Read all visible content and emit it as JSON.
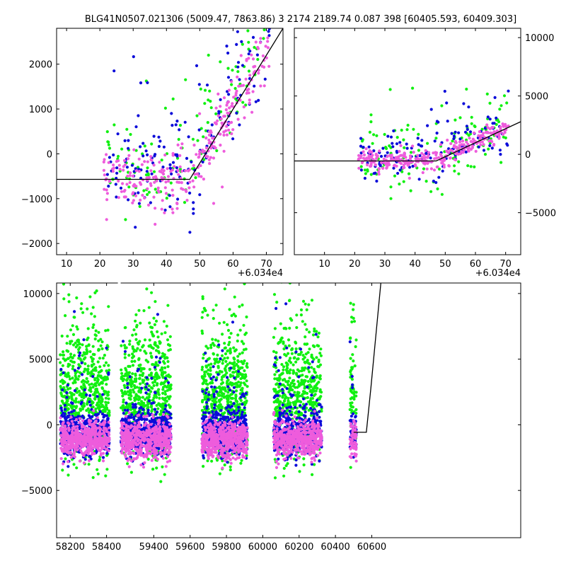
{
  "figure": {
    "title": "BLG41N0507.021306 (5009.47, 7863.86)   3 2174 2189.74 0.087 398 [60405.593, 60409.303]"
  },
  "colors": {
    "blue": "#0b0bd9",
    "green": "#11f011",
    "pink": "#ee5cdc",
    "line": "#000000",
    "background": "#ffffff"
  },
  "chart_data": [
    {
      "type": "scatter",
      "name": "top-left",
      "x_offset_label": "+6.034e4",
      "xlim": [
        7,
        75
      ],
      "ylim": [
        -2250,
        2800
      ],
      "xticks": [
        "10",
        "20",
        "30",
        "40",
        "50",
        "60",
        "70"
      ],
      "xtick_values": [
        10,
        20,
        30,
        40,
        50,
        60,
        70
      ],
      "yticks": [
        "−2000",
        "−1000",
        "0",
        "1000",
        "2000"
      ],
      "ytick_values": [
        -2000,
        -1000,
        0,
        1000,
        2000
      ],
      "model_line": [
        [
          7,
          -570
        ],
        [
          47,
          -570
        ],
        [
          75,
          2800
        ]
      ],
      "series": [
        {
          "color": "pink",
          "x_range": [
            21,
            71
          ],
          "baseline_y": -500,
          "n": 300,
          "scatter": 350
        },
        {
          "color": "blue",
          "x_range": [
            22,
            71
          ],
          "baseline_y": -200,
          "n": 160,
          "scatter": 500
        },
        {
          "color": "green",
          "x_range": [
            22,
            71
          ],
          "baseline_y": -250,
          "n": 130,
          "scatter": 600
        }
      ]
    },
    {
      "type": "scatter",
      "name": "top-right",
      "x_offset_label": "+6.034e4",
      "xlim": [
        0,
        75
      ],
      "ylim": [
        -8600,
        10800
      ],
      "xticks": [
        "10",
        "20",
        "30",
        "40",
        "50",
        "60",
        "70"
      ],
      "xtick_values": [
        10,
        20,
        30,
        40,
        50,
        60,
        70
      ],
      "yticks": [
        "−5000",
        "0",
        "5000",
        "10000"
      ],
      "ytick_values": [
        -5000,
        0,
        5000,
        10000
      ],
      "model_line": [
        [
          0,
          -570
        ],
        [
          47,
          -570
        ],
        [
          75,
          2800
        ]
      ],
      "series": [
        {
          "color": "pink",
          "x_range": [
            21,
            71
          ],
          "baseline_y": -500,
          "n": 300,
          "scatter": 400
        },
        {
          "color": "blue",
          "x_range": [
            22,
            71
          ],
          "baseline_y": -200,
          "n": 150,
          "scatter": 900
        },
        {
          "color": "green",
          "x_range": [
            22,
            71
          ],
          "baseline_y": -200,
          "n": 130,
          "scatter": 1800
        }
      ]
    },
    {
      "type": "scatter",
      "name": "bottom",
      "xlim": [
        58125,
        60680
      ],
      "ylim": [
        -8600,
        10800
      ],
      "xticks": [
        "58200",
        "58400",
        "59400",
        "59600",
        "59800",
        "60000",
        "60200",
        "60400",
        "60600"
      ],
      "xtick_positions": [
        58200,
        58400,
        58660,
        58860,
        59060,
        59260,
        59460,
        59660,
        59860
      ],
      "yticks": [
        "−5000",
        "0",
        "5000",
        "10000"
      ],
      "ytick_values": [
        -5000,
        0,
        5000,
        10000
      ],
      "gap_break_at": 58470,
      "seasons": [
        [
          58145,
          58415
        ],
        [
          58480,
          58755
        ],
        [
          58925,
          59175
        ],
        [
          59320,
          59585
        ],
        [
          59740,
          59775
        ]
      ],
      "model_line": [
        [
          59760,
          -570
        ],
        [
          59830,
          -570
        ],
        [
          59855,
          2800
        ],
        [
          59910,
          10800
        ]
      ],
      "series_note": "dense photometry per season",
      "series": [
        {
          "color": "pink",
          "baseline_y": -1100,
          "scatter": 700
        },
        {
          "color": "blue",
          "baseline_y": -600,
          "scatter": 1300
        },
        {
          "color": "green",
          "baseline_y": 1500,
          "scatter": 3500
        }
      ]
    }
  ]
}
